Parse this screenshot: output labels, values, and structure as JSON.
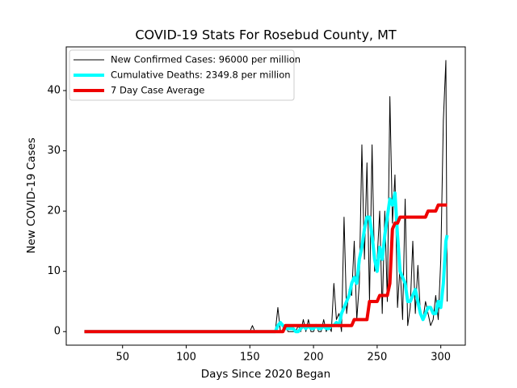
{
  "chart_data": {
    "type": "line",
    "title": "COVID-19 Stats For Rosebud County, MT",
    "x_label": "Days Since 2020 Began",
    "y_label": "New COVID-19 Cases",
    "xlim": [
      5.75,
      319.25
    ],
    "ylim": [
      -2.25,
      47.25
    ],
    "xticks": [
      50,
      100,
      150,
      200,
      250,
      300
    ],
    "yticks": [
      0,
      10,
      20,
      30,
      40
    ],
    "grid": false,
    "legend": "upper left",
    "x": [
      20,
      150,
      152,
      154,
      156,
      158,
      160,
      162,
      164,
      166,
      168,
      170,
      172,
      174,
      176,
      178,
      180,
      182,
      184,
      186,
      188,
      190,
      192,
      194,
      196,
      198,
      200,
      202,
      204,
      206,
      208,
      210,
      212,
      214,
      216,
      218,
      220,
      222,
      224,
      226,
      228,
      230,
      232,
      234,
      236,
      238,
      240,
      242,
      244,
      246,
      248,
      250,
      252,
      254,
      256,
      258,
      260,
      262,
      264,
      266,
      268,
      270,
      272,
      274,
      276,
      278,
      280,
      282,
      284,
      286,
      288,
      290,
      292,
      294,
      296,
      298,
      300,
      302,
      304,
      305
    ],
    "series": [
      {
        "name": "New Confirmed Cases: 96000 per million",
        "color": "#000000",
        "width": 1,
        "values": [
          0,
          0,
          1,
          0,
          0,
          0,
          0,
          0,
          0,
          0,
          0,
          0,
          4,
          0,
          0,
          1,
          0,
          0,
          0,
          0,
          1,
          0,
          2,
          0,
          2,
          0,
          0,
          1,
          0,
          0,
          2,
          0,
          1,
          0,
          8,
          2,
          3,
          0,
          19,
          3,
          7,
          6,
          15,
          2,
          8,
          31,
          12,
          28,
          5,
          31,
          10,
          12,
          20,
          3,
          20,
          5,
          39,
          18,
          26,
          4,
          11,
          2,
          22,
          1,
          4,
          15,
          3,
          11,
          3,
          2,
          5,
          3,
          1,
          2,
          6,
          2,
          12,
          35,
          45,
          5
        ]
      },
      {
        "name": "Cumulative Deaths: 2349.8 per million",
        "color": "#00ffff",
        "width": 4,
        "values": [
          0,
          0,
          0,
          0,
          0,
          0,
          0,
          0,
          0,
          0,
          0,
          0,
          1,
          1.5,
          1,
          0.5,
          0.5,
          0.5,
          0.5,
          0,
          0,
          0.5,
          1,
          0.5,
          1,
          0.5,
          0.5,
          1,
          0.5,
          0.5,
          1,
          0.5,
          0.5,
          1,
          1,
          1.5,
          1,
          3,
          4,
          5,
          6,
          8,
          9,
          8,
          12,
          14,
          17,
          19,
          19,
          16,
          12,
          10,
          14,
          12,
          16,
          19,
          22,
          21,
          23,
          16,
          10,
          9,
          8,
          5,
          5,
          6,
          7,
          5,
          3,
          2,
          3,
          4,
          4,
          3,
          3,
          5,
          4,
          8,
          15,
          16
        ]
      },
      {
        "name": "7 Day Case Average",
        "color": "#ee0000",
        "width": 4,
        "values": [
          0,
          0,
          0,
          0,
          0,
          0,
          0,
          0,
          0,
          0,
          0,
          0,
          0,
          0,
          0,
          1,
          1,
          1,
          1,
          1,
          1,
          1,
          1,
          1,
          1,
          1,
          1,
          1,
          1,
          1,
          1,
          1,
          1,
          1,
          1,
          1,
          1,
          1,
          1,
          1,
          1,
          1,
          2,
          2,
          2,
          2,
          2,
          2,
          5,
          5,
          5,
          5,
          6,
          6,
          6,
          6,
          8,
          17,
          18,
          18,
          19,
          19,
          19,
          19,
          19,
          19,
          19,
          19,
          19,
          19,
          19,
          20,
          20,
          20,
          20,
          21,
          21,
          21,
          21,
          21
        ]
      }
    ]
  }
}
